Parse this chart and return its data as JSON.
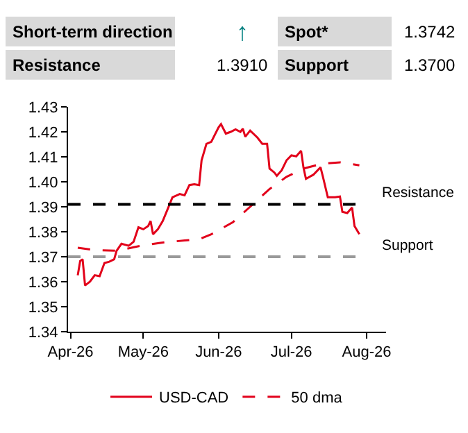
{
  "chart_data": {
    "type": "line",
    "annotations": [
      "Short-term direction",
      "↑",
      "Spot*",
      "1.3742",
      "Resistance",
      "1.3910",
      "Support",
      "1.3700"
    ],
    "series": [
      {
        "name": "USD-CAD",
        "color": "#e2001a",
        "line_style": "solid",
        "x": [
          "2026-04-04",
          "2026-04-05",
          "2026-04-06",
          "2026-04-07",
          "2026-04-09",
          "2026-04-11",
          "2026-04-13",
          "2026-04-15",
          "2026-04-17",
          "2026-04-19",
          "2026-04-20",
          "2026-04-22",
          "2026-04-25",
          "2026-04-27",
          "2026-04-29",
          "2026-05-01",
          "2026-05-03",
          "2026-05-04",
          "2026-05-05",
          "2026-05-07",
          "2026-05-09",
          "2026-05-11",
          "2026-05-13",
          "2026-05-16",
          "2026-05-18",
          "2026-05-20",
          "2026-05-22",
          "2026-05-24",
          "2026-05-25",
          "2026-05-27",
          "2026-05-29",
          "2026-06-01",
          "2026-06-02",
          "2026-06-04",
          "2026-06-06",
          "2026-06-08",
          "2026-06-10",
          "2026-06-11",
          "2026-06-12",
          "2026-06-14",
          "2026-06-17",
          "2026-06-19",
          "2026-06-21",
          "2026-06-22",
          "2026-06-24",
          "2026-06-25",
          "2026-06-27",
          "2026-06-29",
          "2026-07-01",
          "2026-07-03",
          "2026-07-05",
          "2026-07-06",
          "2026-07-07",
          "2026-07-10",
          "2026-07-13",
          "2026-07-14",
          "2026-07-16",
          "2026-07-19",
          "2026-07-21",
          "2026-07-22",
          "2026-07-24",
          "2026-07-26",
          "2026-07-27",
          "2026-07-29"
        ],
        "values": [
          1.3626,
          1.3683,
          1.369,
          1.3585,
          1.36,
          1.3626,
          1.3622,
          1.3675,
          1.368,
          1.369,
          1.3724,
          1.3752,
          1.3744,
          1.376,
          1.3818,
          1.381,
          1.3823,
          1.3843,
          1.379,
          1.381,
          1.3843,
          1.389,
          1.3938,
          1.3951,
          1.3946,
          1.3987,
          1.399,
          1.3987,
          1.4086,
          1.4152,
          1.416,
          1.4218,
          1.4231,
          1.4193,
          1.42,
          1.421,
          1.42,
          1.4213,
          1.418,
          1.4205,
          1.4177,
          1.4152,
          1.4152,
          1.4053,
          1.4037,
          1.4024,
          1.4046,
          1.4086,
          1.4106,
          1.4102,
          1.4124,
          1.4056,
          1.4012,
          1.4028,
          1.4058,
          1.402,
          1.3938,
          1.3938,
          1.3941,
          1.388,
          1.3875,
          1.3897,
          1.3823,
          1.379
        ]
      },
      {
        "name": "50 dma",
        "color": "#e2001a",
        "line_style": "dashed",
        "x": [
          "2026-04-04",
          "2026-04-11",
          "2026-04-20",
          "2026-04-30",
          "2026-05-09",
          "2026-05-18",
          "2026-05-24",
          "2026-05-29",
          "2026-06-07",
          "2026-06-14",
          "2026-06-22",
          "2026-06-29",
          "2026-07-06",
          "2026-07-14",
          "2026-07-21",
          "2026-07-29"
        ],
        "values": [
          1.3736,
          1.3727,
          1.3724,
          1.3744,
          1.3757,
          1.3765,
          1.377,
          1.379,
          1.3839,
          1.39,
          1.3971,
          1.402,
          1.4053,
          1.4073,
          1.4078,
          1.4066
        ]
      }
    ],
    "xlim": [
      "2026-03-31",
      "2026-08-09"
    ],
    "xticks": [
      {
        "value": "2026-04-01",
        "label": "Apr-26"
      },
      {
        "value": "2026-05-01",
        "label": "May-26"
      },
      {
        "value": "2026-06-01",
        "label": "Jun-26"
      },
      {
        "value": "2026-07-01",
        "label": "Jul-26"
      },
      {
        "value": "2026-08-01",
        "label": "Aug-26"
      }
    ],
    "ylim": [
      1.34,
      1.43
    ],
    "yticks": [
      {
        "value": 1.34,
        "label": "1.34"
      },
      {
        "value": 1.35,
        "label": "1.35"
      },
      {
        "value": 1.36,
        "label": "1.36"
      },
      {
        "value": 1.37,
        "label": "1.37"
      },
      {
        "value": 1.38,
        "label": "1.38"
      },
      {
        "value": 1.39,
        "label": "1.39"
      },
      {
        "value": 1.4,
        "label": "1.40"
      },
      {
        "value": 1.41,
        "label": "1.41"
      },
      {
        "value": 1.42,
        "label": "1.42"
      },
      {
        "value": 1.43,
        "label": "1.43"
      }
    ],
    "ref_lines": [
      {
        "axis": "y",
        "value": 1.391,
        "label": "Resistance",
        "color": "#000000",
        "line_style": "dashed"
      },
      {
        "axis": "y",
        "value": 1.37,
        "label": "Support",
        "color": "#999999",
        "line_style": "dashed"
      }
    ],
    "legend": "bottom",
    "marker": "none"
  }
}
